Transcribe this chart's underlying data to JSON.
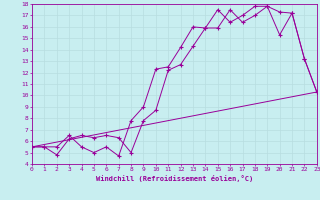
{
  "xlabel": "Windchill (Refroidissement éolien,°C)",
  "bg_color": "#c8eef0",
  "line_color": "#990099",
  "grid_color": "#b8dde0",
  "xmin": 0,
  "xmax": 23,
  "ymin": 4,
  "ymax": 18,
  "line1_x": [
    0,
    1,
    2,
    3,
    4,
    5,
    6,
    7,
    8,
    9,
    10,
    11,
    12,
    13,
    14,
    15,
    16,
    17,
    18,
    19,
    20,
    21,
    22,
    23
  ],
  "line1_y": [
    5.5,
    5.5,
    5.5,
    6.5,
    5.5,
    5.0,
    5.5,
    4.7,
    7.8,
    9.0,
    12.3,
    12.5,
    14.2,
    16.0,
    15.9,
    17.5,
    16.4,
    17.0,
    17.8,
    17.8,
    17.3,
    17.2,
    13.2,
    10.3
  ],
  "line2_x": [
    0,
    1,
    2,
    3,
    4,
    5,
    6,
    7,
    8,
    9,
    10,
    11,
    12,
    13,
    14,
    15,
    16,
    17,
    18,
    19,
    20,
    21,
    22,
    23
  ],
  "line2_y": [
    5.5,
    5.5,
    4.8,
    6.2,
    6.5,
    6.3,
    6.5,
    6.3,
    5.0,
    7.8,
    8.7,
    12.2,
    12.7,
    14.3,
    15.9,
    15.9,
    17.5,
    16.4,
    17.0,
    17.8,
    15.3,
    17.2,
    13.2,
    10.3
  ],
  "line3_x": [
    0,
    23
  ],
  "line3_y": [
    5.5,
    10.3
  ]
}
